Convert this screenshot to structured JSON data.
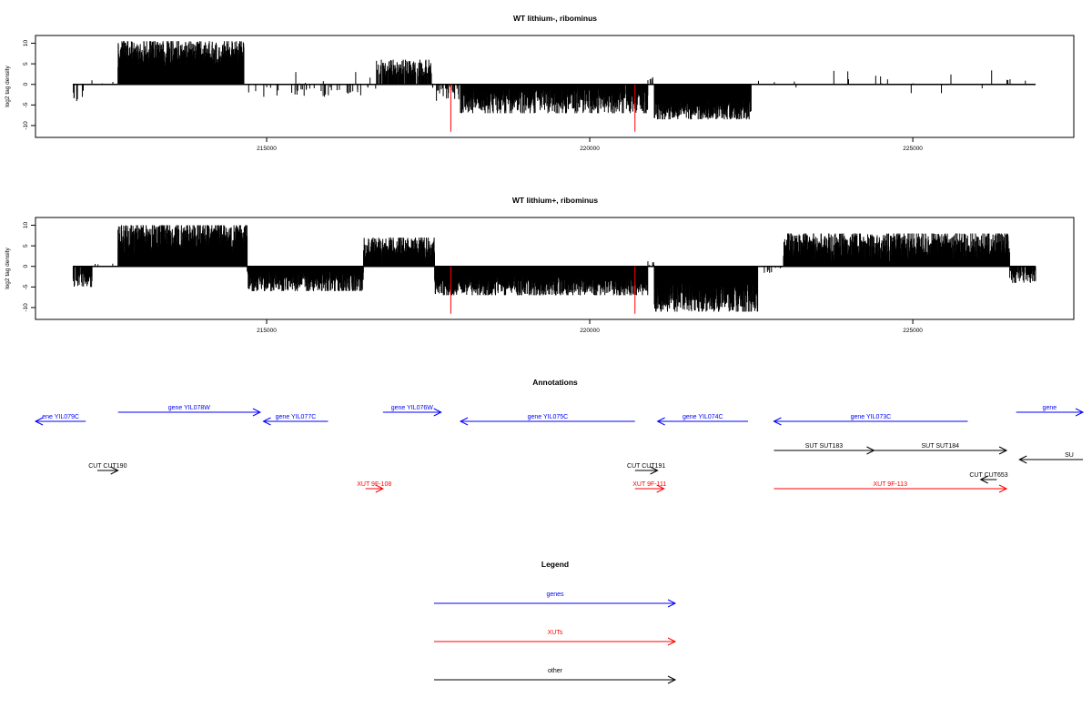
{
  "chart_data": [
    {
      "type": "bar",
      "title": "WT lithium-, ribominus",
      "xlabel": "",
      "ylabel": "log2 tag density",
      "xlim": [
        212000,
        226900
      ],
      "ylim": [
        -12,
        11
      ],
      "x_ticks": [
        215000,
        220000,
        225000
      ],
      "y_ticks": [
        10,
        5,
        0,
        -5,
        -10
      ],
      "x_tick_labels": [
        "215000",
        "220000",
        "225000"
      ],
      "y_tick_labels": [
        "10",
        "5",
        "0",
        "-5",
        "-10"
      ],
      "baseline": {
        "from": 212000,
        "to": 226900,
        "value": 0
      },
      "regions": [
        {
          "start": 212000,
          "end": 212200,
          "sign": -1,
          "density": 0.15,
          "max": 5.0
        },
        {
          "start": 212200,
          "end": 212700,
          "sign": 1,
          "density": 0.02,
          "max": 1.0
        },
        {
          "start": 212700,
          "end": 214650,
          "sign": 1,
          "density": 1.0,
          "min": 4.0,
          "max": 10.5
        },
        {
          "start": 214650,
          "end": 216700,
          "sign": -1,
          "density": 0.05,
          "max": 3.0
        },
        {
          "start": 214650,
          "end": 216700,
          "sign": 1,
          "density": 0.01,
          "max": 3.0
        },
        {
          "start": 216700,
          "end": 217550,
          "sign": 1,
          "density": 0.5,
          "min": 2.0,
          "max": 6.0
        },
        {
          "start": 217550,
          "end": 218000,
          "sign": -1,
          "density": 0.2,
          "max": 4.0
        },
        {
          "start": 218000,
          "end": 220900,
          "sign": -1,
          "density": 0.8,
          "min": 1.0,
          "max": 7.0
        },
        {
          "start": 220900,
          "end": 221000,
          "sign": 1,
          "density": 0.2,
          "max": 2.0
        },
        {
          "start": 221000,
          "end": 222500,
          "sign": -1,
          "density": 1.0,
          "min": 3.0,
          "max": 8.5
        },
        {
          "start": 222500,
          "end": 226800,
          "sign": 1,
          "density": 0.01,
          "max": 3.5
        },
        {
          "start": 222500,
          "end": 226800,
          "sign": -1,
          "density": 0.01,
          "max": 2.5
        }
      ],
      "spikes": [
        {
          "x": 217850,
          "value": -11.5,
          "color": "#ff0000"
        },
        {
          "x": 220700,
          "value": -11.5,
          "color": "#ff0000"
        }
      ]
    },
    {
      "type": "bar",
      "title": "WT lithium+, ribominus",
      "xlabel": "",
      "ylabel": "log2 tag density",
      "xlim": [
        212000,
        226900
      ],
      "ylim": [
        -12,
        11
      ],
      "x_ticks": [
        215000,
        220000,
        225000
      ],
      "y_ticks": [
        10,
        5,
        0,
        -5,
        -10
      ],
      "x_tick_labels": [
        "215000",
        "220000",
        "225000"
      ],
      "y_tick_labels": [
        "10",
        "5",
        "0",
        "-5",
        "-10"
      ],
      "baseline": {
        "from": 212000,
        "to": 226900,
        "value": 0
      },
      "regions": [
        {
          "start": 212000,
          "end": 212300,
          "sign": -1,
          "density": 0.5,
          "min": 1.0,
          "max": 5.0
        },
        {
          "start": 212300,
          "end": 212700,
          "sign": 1,
          "density": 0.03,
          "max": 1.0
        },
        {
          "start": 212700,
          "end": 214700,
          "sign": 1,
          "density": 1.0,
          "min": 3.0,
          "max": 10.0
        },
        {
          "start": 214700,
          "end": 216500,
          "sign": -1,
          "density": 0.9,
          "min": 1.0,
          "max": 6.0
        },
        {
          "start": 216500,
          "end": 217600,
          "sign": 1,
          "density": 0.8,
          "min": 2.0,
          "max": 7.0
        },
        {
          "start": 217600,
          "end": 220900,
          "sign": -1,
          "density": 1.0,
          "min": 2.0,
          "max": 7.0
        },
        {
          "start": 220900,
          "end": 221000,
          "sign": 1,
          "density": 0.3,
          "max": 2.0
        },
        {
          "start": 221000,
          "end": 222600,
          "sign": -1,
          "density": 1.0,
          "min": 3.0,
          "max": 11.0
        },
        {
          "start": 222600,
          "end": 223000,
          "sign": -1,
          "density": 0.1,
          "max": 2.0
        },
        {
          "start": 223000,
          "end": 226500,
          "sign": 1,
          "density": 1.0,
          "min": 1.0,
          "max": 8.0
        },
        {
          "start": 226500,
          "end": 226900,
          "sign": -1,
          "density": 0.5,
          "min": 1.0,
          "max": 4.0
        }
      ],
      "spikes": [
        {
          "x": 217850,
          "value": -11.5,
          "color": "#ff0000"
        },
        {
          "x": 220700,
          "value": -11.5,
          "color": "#ff0000"
        }
      ]
    }
  ],
  "annotations": {
    "title": "Annotations",
    "xlim": [
      212000,
      226900
    ],
    "colors": {
      "gene": "#0000ff",
      "xut": "#ff0000",
      "other": "#000000"
    },
    "features": [
      {
        "label": "ene YIL079C",
        "kind": "gene",
        "start": 211400,
        "end": 212200,
        "strand": "-",
        "row": 1
      },
      {
        "label": "gene YIL078W",
        "kind": "gene",
        "start": 212700,
        "end": 214900,
        "strand": "+",
        "row": 0
      },
      {
        "label": "gene YIL077C",
        "kind": "gene",
        "start": 214950,
        "end": 215950,
        "strand": "-",
        "row": 1
      },
      {
        "label": "gene YIL076W",
        "kind": "gene",
        "start": 216800,
        "end": 217700,
        "strand": "+",
        "row": 0
      },
      {
        "label": "gene YIL075C",
        "kind": "gene",
        "start": 218000,
        "end": 220700,
        "strand": "-",
        "row": 1
      },
      {
        "label": "gene YIL074C",
        "kind": "gene",
        "start": 221050,
        "end": 222450,
        "strand": "-",
        "row": 1
      },
      {
        "label": "gene YIL073C",
        "kind": "gene",
        "start": 222850,
        "end": 225850,
        "strand": "-",
        "row": 1
      },
      {
        "label": "gene",
        "kind": "gene",
        "start": 226600,
        "end": 228000,
        "strand": "+",
        "row": 0
      },
      {
        "label": "SUT SUT183",
        "kind": "other",
        "start": 222850,
        "end": 224400,
        "strand": "+",
        "row": 2
      },
      {
        "label": "SUT SUT184",
        "kind": "other",
        "start": 224400,
        "end": 226450,
        "strand": "+",
        "row": 2
      },
      {
        "label": "SU",
        "kind": "other",
        "start": 226650,
        "end": 228000,
        "strand": "-",
        "row": 3
      },
      {
        "label": "CUT CUT190",
        "kind": "other",
        "start": 212380,
        "end": 212700,
        "strand": "+",
        "row": 4
      },
      {
        "label": "CUT CUT191",
        "kind": "other",
        "start": 220700,
        "end": 221050,
        "strand": "+",
        "row": 4
      },
      {
        "label": "CUT CUT653",
        "kind": "other",
        "start": 226050,
        "end": 226300,
        "strand": "-",
        "row": 5
      },
      {
        "label": "XUT 9F-108",
        "kind": "xut",
        "start": 216530,
        "end": 216800,
        "strand": "+",
        "row": 6
      },
      {
        "label": "XUT 9F-111",
        "kind": "xut",
        "start": 220700,
        "end": 221150,
        "strand": "+",
        "row": 6
      },
      {
        "label": "XUT 9F-113",
        "kind": "xut",
        "start": 222850,
        "end": 226450,
        "strand": "+",
        "row": 6
      }
    ]
  },
  "legend": {
    "title": "Legend",
    "items": [
      {
        "label": "genes",
        "color": "#0000ff"
      },
      {
        "label": "XUTs",
        "color": "#ff0000"
      },
      {
        "label": "other",
        "color": "#000000"
      }
    ]
  }
}
